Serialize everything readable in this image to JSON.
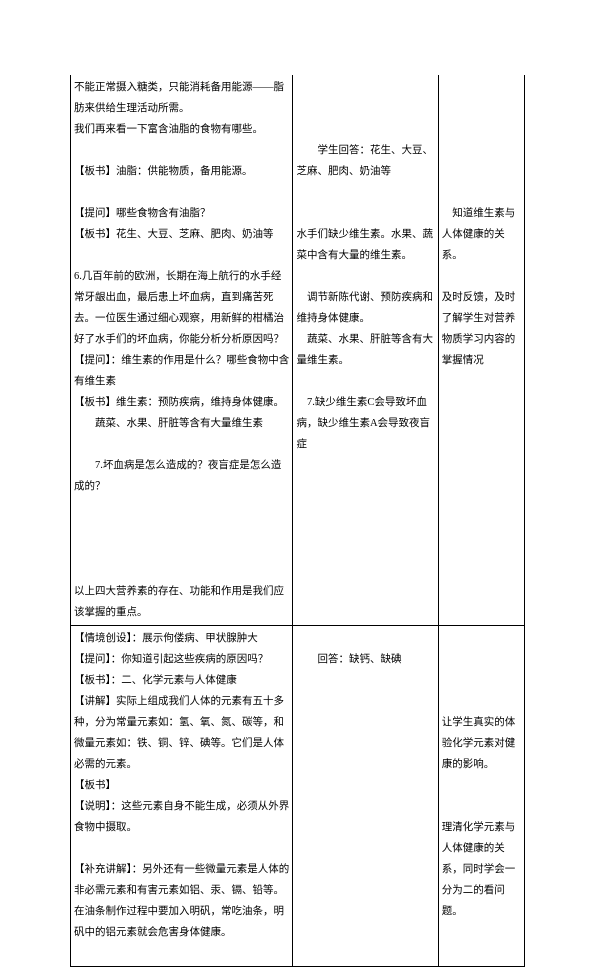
{
  "row1": {
    "col1": {
      "p1": "不能正常摄入糖类，只能消耗备用能源——脂肪来供给生理活动所需。",
      "p2": "我们再来看一下富含油脂的食物有哪些。",
      "p3": "【板书】油脂：供能物质，备用能源。",
      "p4": "【提问】哪些食物含有油脂？",
      "p5": "【板书】花生、大豆、芝麻、肥肉、奶油等",
      "p6": "6.几百年前的欧洲，长期在海上航行的水手经常牙龈出血，最后患上坏血病，直到痛苦死去。一位医生通过细心观察，用新鲜的柑橘治好了水手们的坏血病，你能分析分析原因吗？",
      "p7": "【提问】：维生素的作用是什么？哪些食物中含有维生素",
      "p8": "【板书】维生素：预防疾病，维持身体健康。",
      "p9": "蔬菜、水果、肝脏等含有大量维生素",
      "p10": "7.坏血病是怎么造成的？夜盲症是怎么造成的？",
      "p11": "以上四大营养素的存在、功能和作用是我们应该掌握的重点。"
    },
    "col2": {
      "p1": "学生回答：花生、大豆、芝麻、肥肉、奶油等",
      "p2": "水手们缺少维生素。水果、蔬菜中含有大量的维生素。",
      "p3": "调节新陈代谢、预防疾病和维持身体健康。",
      "p4": "蔬菜、水果、肝脏等含有大量维生素。",
      "p5": "7.缺少维生素C会导致坏血病，缺少维生素A会导致夜盲症"
    },
    "col3": {
      "p1": "知道维生素与人体健康的关系。",
      "p2": "及时反馈，及时了解学生对营养物质学习内容的掌握情况"
    }
  },
  "row2": {
    "col1": {
      "p1": "【情境创设】：展示佝偻病、甲状腺肿大",
      "p2": "【提问】：你知道引起这些疾病的原因吗？",
      "p3": "【板书】：二、化学元素与人体健康",
      "p4": "【讲解】实际上组成我们人体的元素有五十多种，分为常量元素如：氢、氧、氮、碳等，和微量元素如：铁、铜、锌、碘等。它们是人体必需的元素。",
      "p5": "【板书】",
      "p6": "【说明】：这些元素自身不能生成，必须从外界食物中摄取。",
      "p7": "【补充讲解】：另外还有一些微量元素是人体的非必需元素和有害元素如铝、汞、镉、铅等。在油条制作过程中要加入明矾，常吃油条，明矾中的铝元素就会危害身体健康。"
    },
    "col2": {
      "p1": "回答：缺钙、缺碘"
    },
    "col3": {
      "p1": "让学生真实的体验化学元素对健康的影响。",
      "p2": "理清化学元素与人体健康的关系，同时学会一分为二的看问题。"
    }
  }
}
